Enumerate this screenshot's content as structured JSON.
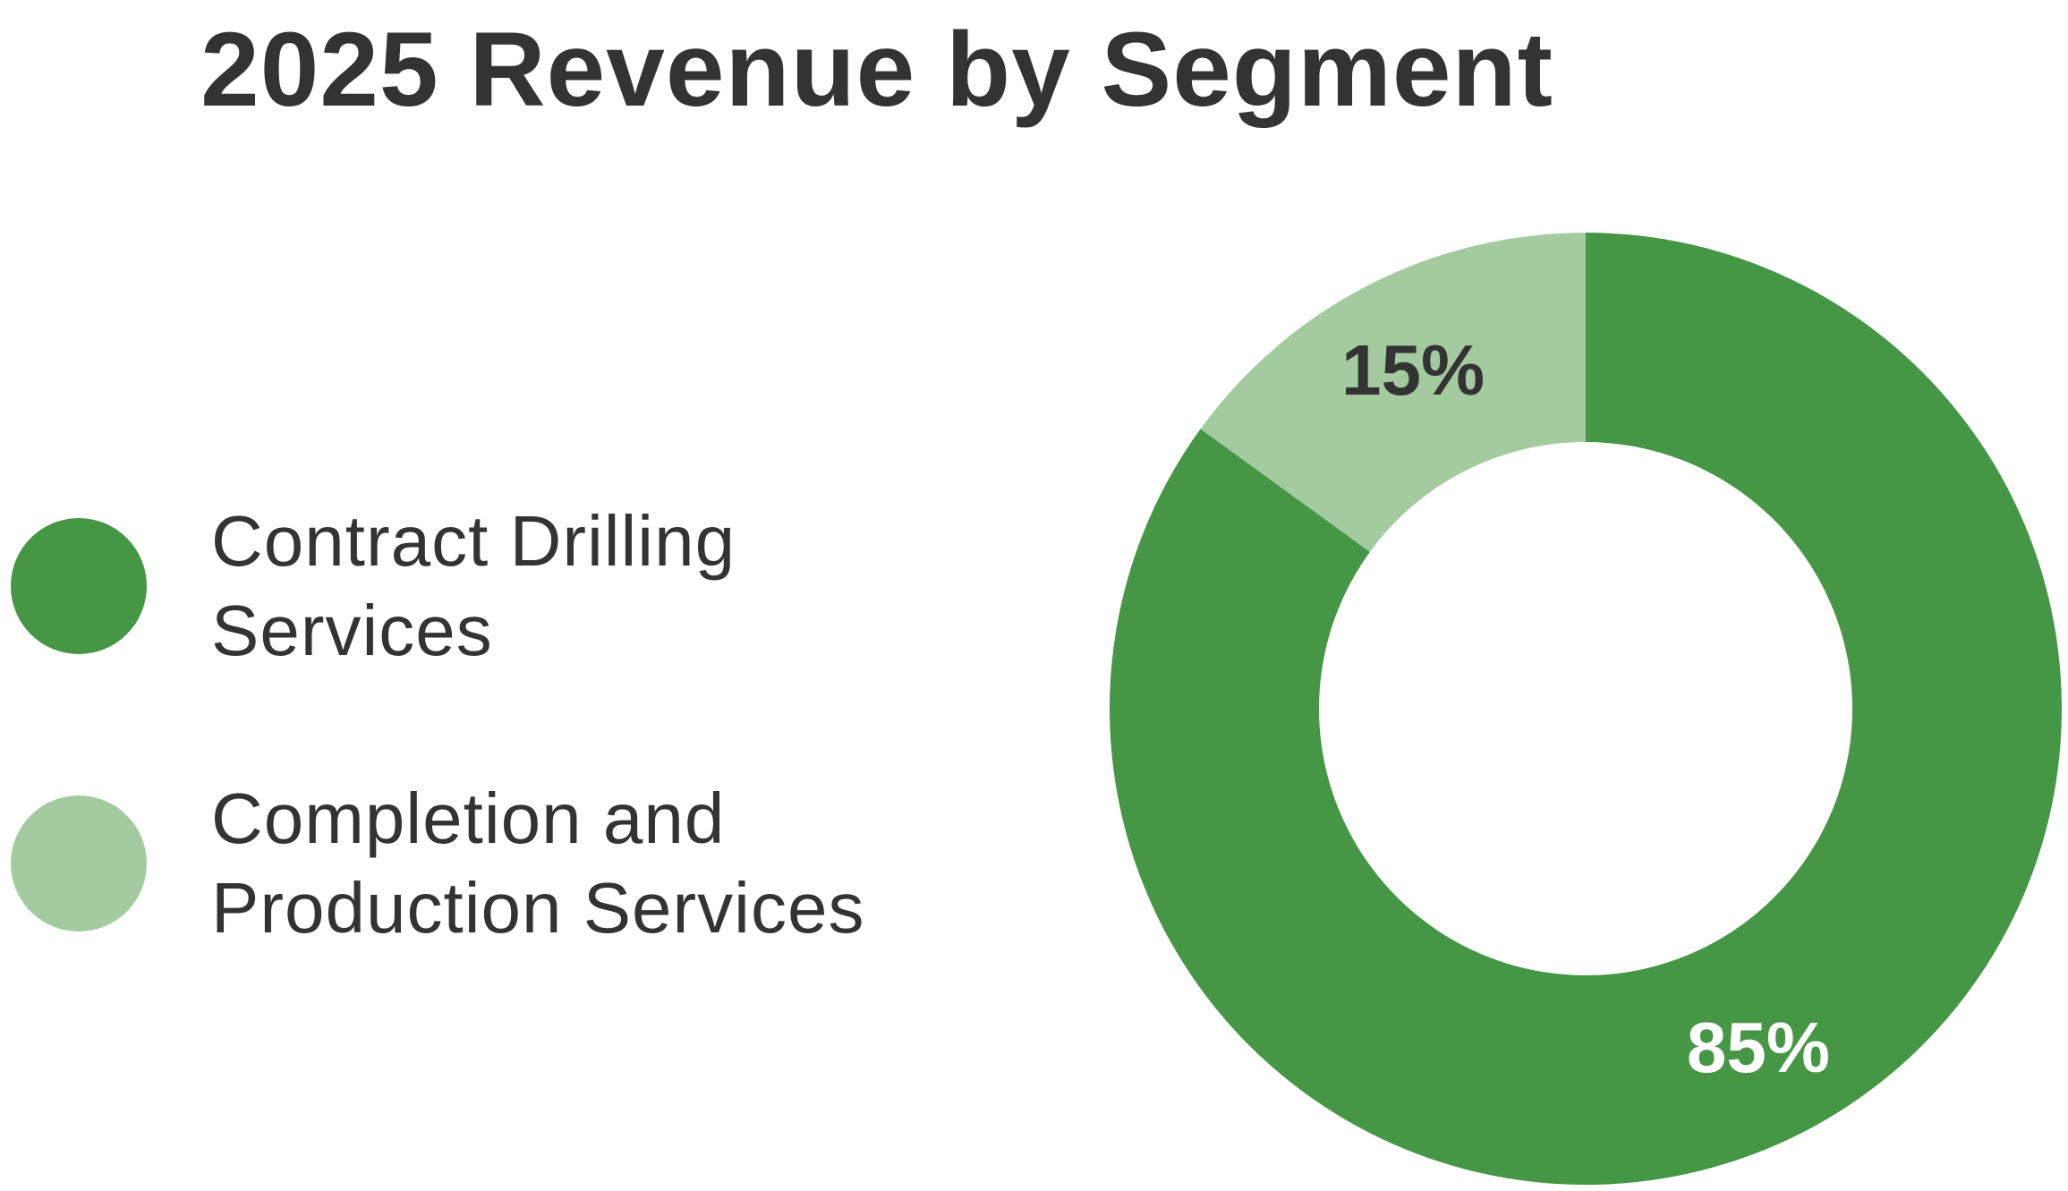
{
  "chart_data": {
    "type": "pie",
    "subtype": "donut",
    "title": "2025 Revenue by Segment",
    "slices": [
      {
        "label": "Contract Drilling Services",
        "value": 85,
        "display": "85%",
        "color": "#459645",
        "label_color": "#ffffff"
      },
      {
        "label": "Completion and Production Services",
        "value": 15,
        "display": "15%",
        "color": "#a4cba0",
        "label_color": "#333333"
      }
    ],
    "legend_position": "left"
  },
  "legend": {
    "items": [
      {
        "label": "Contract Drilling Services",
        "color": "#459645"
      },
      {
        "label": "Completion and Production Services",
        "color": "#a4cba0"
      }
    ]
  }
}
